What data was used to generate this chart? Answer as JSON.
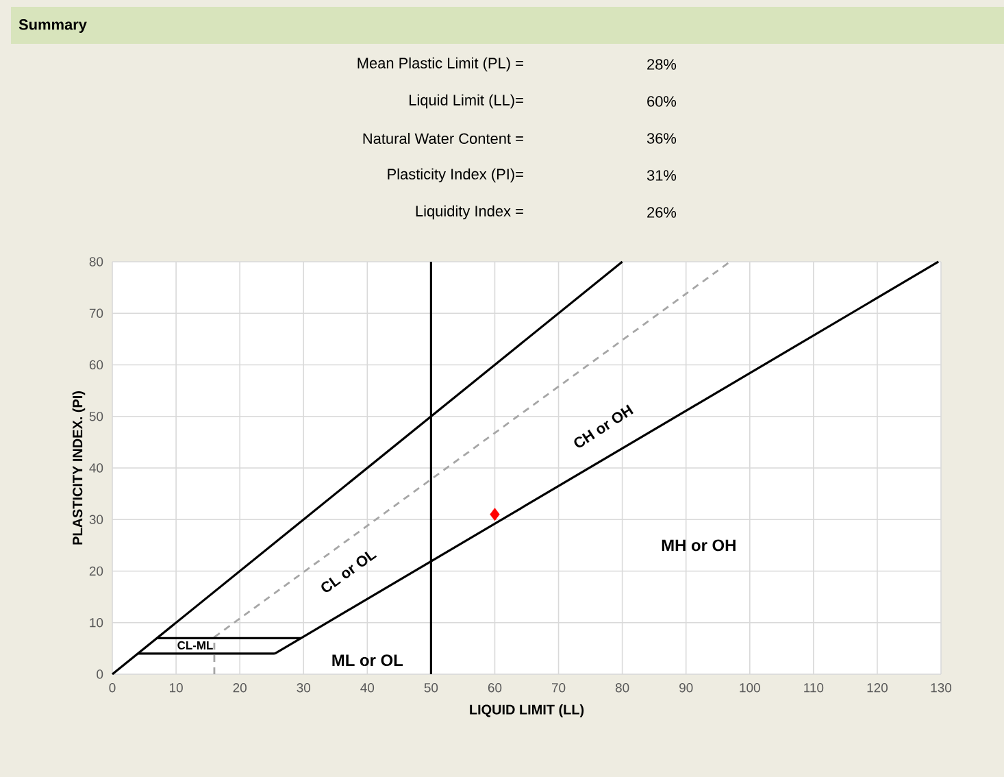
{
  "chart_data": {
    "type": "line",
    "title": "Summary",
    "annotations": [
      "Mean Plastic Limit (PL) =",
      "28%",
      "Liquid Limit  (LL)=",
      "60%",
      "Natural Water Content =",
      "36%",
      "Plasticity Index (PI)=",
      "31%",
      "Liquidity Index =",
      "26%",
      "CH or OH",
      "CL or OL",
      "MH or OH",
      "ML or OL",
      "CL-ML"
    ],
    "xlabel": "LIQUID LIMIT (LL)",
    "ylabel": "PLASTICITY INDEX. (PI)",
    "xlim": [
      0,
      130
    ],
    "ylim": [
      0,
      80
    ],
    "xticks": [
      0,
      10,
      20,
      30,
      40,
      50,
      60,
      70,
      80,
      90,
      100,
      110,
      120,
      130
    ],
    "yticks": [
      0,
      10,
      20,
      30,
      40,
      50,
      60,
      70,
      80
    ],
    "grid": true,
    "marker": "none",
    "series": [
      {
        "color": "#000000",
        "x": [
          0,
          80
        ],
        "values": [
          0,
          80
        ]
      },
      {
        "color": "#a6a6a6",
        "line_style": "dashed",
        "x": [
          16,
          16,
          96.9
        ],
        "values": [
          0,
          7.2,
          80
        ]
      },
      {
        "color": "#000000",
        "x": [
          25.5,
          29.6,
          129.6
        ],
        "values": [
          4,
          7,
          80
        ]
      },
      {
        "color": "#000000",
        "x": [
          4,
          25.5
        ],
        "values": [
          4,
          4
        ]
      },
      {
        "color": "#000000",
        "x": [
          7,
          29.6
        ],
        "values": [
          7,
          7
        ]
      },
      {
        "color": "#000000",
        "x": [
          50,
          50
        ],
        "values": [
          0,
          80
        ]
      },
      {
        "type": "scatter",
        "marker": "diamond",
        "color": "#ff0000",
        "x": [
          60
        ],
        "values": [
          31
        ]
      }
    ]
  }
}
